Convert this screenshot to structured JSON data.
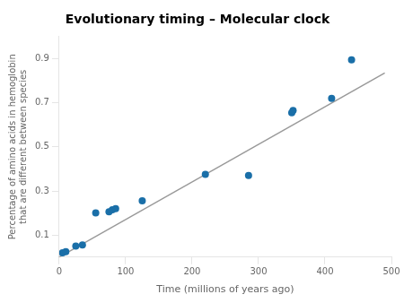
{
  "chart_data": {
    "type": "scatter",
    "title": "Evolutionary timing – Molecular clock",
    "x_label": "Time (millions of years ago)",
    "y_label": "Percentage of amino acids in hemoglobin\nthat are different between species",
    "series": [
      {
        "type": "line",
        "color": "#999999",
        "x": [
          0,
          490
        ],
        "values": [
          0.0,
          0.835
        ]
      },
      {
        "type": "scatter",
        "color": "#1a6fa8",
        "x": [
          5,
          10,
          25,
          35,
          55,
          75,
          80,
          85,
          125,
          220,
          285,
          350,
          352,
          410,
          440
        ],
        "values": [
          0.02,
          0.025,
          0.05,
          0.055,
          0.2,
          0.205,
          0.215,
          0.22,
          0.255,
          0.375,
          0.37,
          0.655,
          0.665,
          0.72,
          0.895
        ]
      }
    ],
    "xlim": [
      0,
      500
    ],
    "xticks": [
      0,
      100,
      200,
      300,
      400,
      500
    ],
    "ylim": [
      0,
      1.0
    ],
    "yticks": [
      0.1,
      0.3,
      0.5,
      0.7,
      0.9
    ],
    "grid": false
  }
}
